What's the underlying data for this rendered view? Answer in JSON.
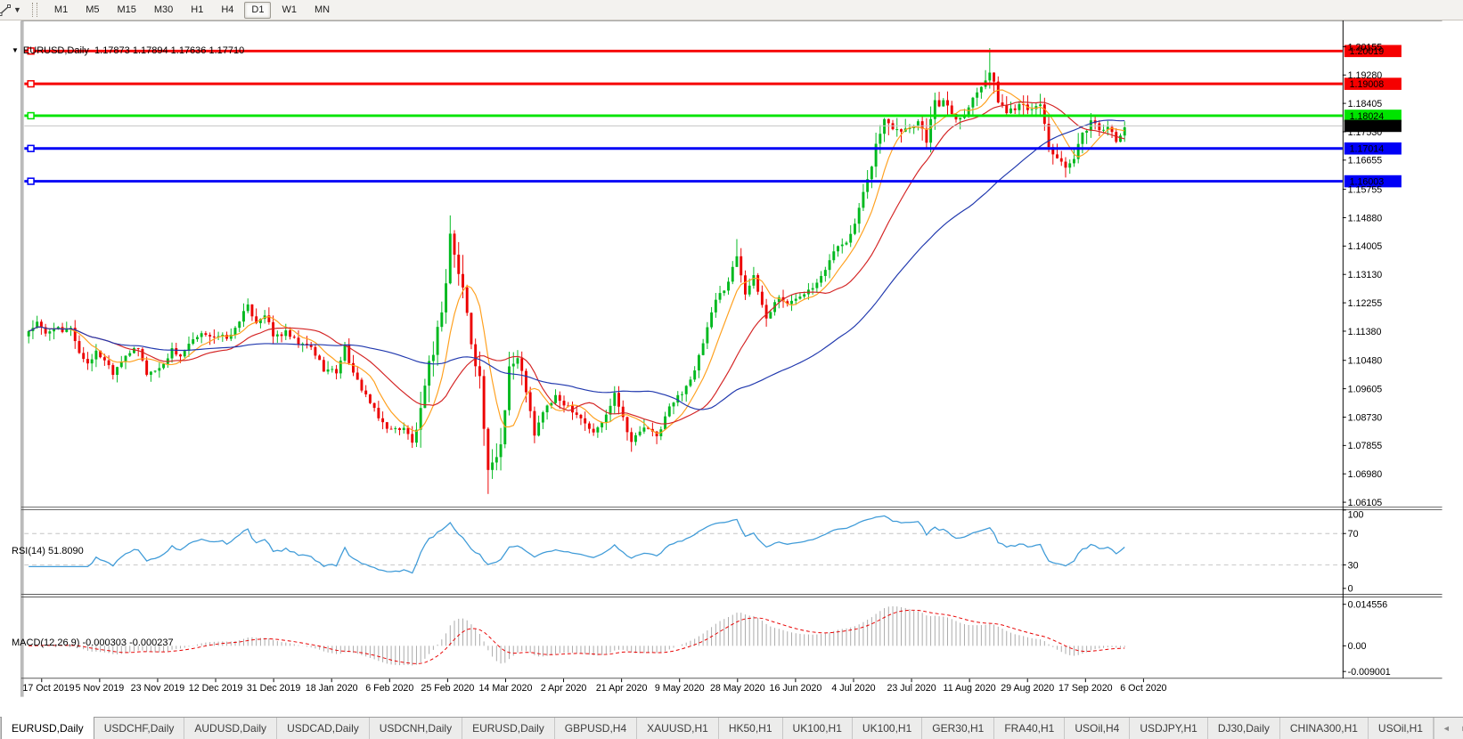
{
  "toolbar": {
    "draw_icon": "trendline-tool",
    "timeframes": [
      "M1",
      "M5",
      "M15",
      "M30",
      "H1",
      "H4",
      "D1",
      "W1",
      "MN"
    ],
    "active_timeframe": "D1"
  },
  "header": {
    "collapse_icon": "▼",
    "symbol": "EURUSD,Daily",
    "ohlc": "1.17873 1.17894 1.17636 1.17710"
  },
  "indicators": {
    "rsi": {
      "label": "RSI(14) 51.8090",
      "value": 51.809,
      "color": "#3f9bd8",
      "axis": [
        {
          "v": 100,
          "t": "100"
        },
        {
          "v": 70,
          "t": "70",
          "dashed": true
        },
        {
          "v": 30,
          "t": "30",
          "dashed": true
        },
        {
          "v": 0,
          "t": "0"
        }
      ]
    },
    "macd": {
      "label": "MACD(12,26,9) -0.000303 -0.000237",
      "main": -0.000303,
      "signal": -0.000237,
      "hist_color": "#a9a9a9",
      "signal_color": "#e80000",
      "axis": [
        {
          "v": 0.014556,
          "t": "0.014556"
        },
        {
          "v": 0,
          "t": "0.00"
        },
        {
          "v": -0.009001,
          "t": "-0.009001"
        }
      ]
    }
  },
  "chart_data": {
    "type": "candlestick",
    "title": "EURUSD,Daily",
    "colors": {
      "bull": "#00b91f",
      "bear": "#ec0000",
      "ma_fast": "#ffa01e",
      "ma_mid": "#d42424",
      "ma_slow": "#2038ae",
      "current_line": "#c4c4c4"
    },
    "price_axis_ticks": [
      "1.20155",
      "1.19280",
      "1.18405",
      "1.17530",
      "1.16655",
      "1.15755",
      "1.14880",
      "1.14005",
      "1.13130",
      "1.12255",
      "1.11380",
      "1.10480",
      "1.09605",
      "1.08730",
      "1.07855",
      "1.06980",
      "1.06105"
    ],
    "hlines": [
      {
        "price": 1.20019,
        "label": "1.20019",
        "color": "#f60000",
        "text_color": "#ffffff"
      },
      {
        "price": 1.19008,
        "label": "1.19008",
        "color": "#f60000",
        "text_color": "#ffffff"
      },
      {
        "price": 1.18024,
        "label": "1.18024",
        "color": "#00e400",
        "text_color": "#000000"
      },
      {
        "price": 1.17014,
        "label": "1.17014",
        "color": "#0000f6",
        "text_color": "#ffffff"
      },
      {
        "price": 1.16003,
        "label": "1.16003",
        "color": "#0000f6",
        "text_color": "#ffffff"
      }
    ],
    "current_price": {
      "value": 1.1771,
      "label": "1.17710",
      "box_color": "#000000",
      "text_color": "#ffffff"
    },
    "moving_averages": [
      {
        "period": 8,
        "color": "#ffa01e"
      },
      {
        "period": 21,
        "color": "#d42424"
      },
      {
        "period": 55,
        "color": "#2038ae"
      }
    ],
    "date_axis_labels": [
      "17 Oct 2019",
      "5 Nov 2019",
      "23 Nov 2019",
      "12 Dec 2019",
      "31 Dec 2019",
      "18 Jan 2020",
      "6 Feb 2020",
      "25 Feb 2020",
      "14 Mar 2020",
      "2 Apr 2020",
      "21 Apr 2020",
      "9 May 2020",
      "28 May 2020",
      "16 Jun 2020",
      "4 Jul 2020",
      "23 Jul 2020",
      "11 Aug 2020",
      "29 Aug 2020",
      "17 Sep 2020",
      "6 Oct 2020"
    ],
    "bar_count": 261,
    "price_path": {
      "keyframes": [
        [
          0,
          1.114
        ],
        [
          2,
          1.1162
        ],
        [
          4,
          1.1128
        ],
        [
          6,
          1.1152
        ],
        [
          8,
          1.1132
        ],
        [
          10,
          1.1152
        ],
        [
          12,
          1.107
        ],
        [
          14,
          1.104
        ],
        [
          16,
          1.1072
        ],
        [
          18,
          1.1052
        ],
        [
          20,
          1.1012
        ],
        [
          23,
          1.1068
        ],
        [
          26,
          1.1082
        ],
        [
          28,
          1.1008
        ],
        [
          31,
          1.1022
        ],
        [
          34,
          1.108
        ],
        [
          36,
          1.1062
        ],
        [
          39,
          1.1108
        ],
        [
          42,
          1.1132
        ],
        [
          45,
          1.1118
        ],
        [
          48,
          1.1122
        ],
        [
          50,
          1.1175
        ],
        [
          52,
          1.1212
        ],
        [
          54,
          1.1168
        ],
        [
          56,
          1.1192
        ],
        [
          58,
          1.1122
        ],
        [
          61,
          1.1132
        ],
        [
          64,
          1.1098
        ],
        [
          67,
          1.1088
        ],
        [
          70,
          1.1022
        ],
        [
          73,
          1.1012
        ],
        [
          75,
          1.1092
        ],
        [
          77,
          1.1002
        ],
        [
          80,
          1.0942
        ],
        [
          83,
          1.0868
        ],
        [
          86,
          1.0832
        ],
        [
          89,
          1.0842
        ],
        [
          91,
          1.0792
        ],
        [
          93,
          1.0882
        ],
        [
          95,
          1.1026
        ],
        [
          97,
          1.1138
        ],
        [
          99,
          1.1285
        ],
        [
          100,
          1.1442
        ],
        [
          101,
          1.1368
        ],
        [
          103,
          1.127
        ],
        [
          105,
          1.1108
        ],
        [
          107,
          1.0992
        ],
        [
          109,
          1.0692
        ],
        [
          110,
          1.0722
        ],
        [
          112,
          1.0792
        ],
        [
          114,
          1.1032
        ],
        [
          116,
          1.1048
        ],
        [
          118,
          1.0962
        ],
        [
          120,
          1.0812
        ],
        [
          122,
          1.0892
        ],
        [
          125,
          1.0932
        ],
        [
          128,
          1.0908
        ],
        [
          131,
          1.0872
        ],
        [
          134,
          1.0822
        ],
        [
          137,
          1.0878
        ],
        [
          139,
          1.0952
        ],
        [
          141,
          1.0872
        ],
        [
          143,
          1.0798
        ],
        [
          146,
          1.0842
        ],
        [
          149,
          1.0812
        ],
        [
          152,
          1.0902
        ],
        [
          155,
          1.0952
        ],
        [
          158,
          1.1012
        ],
        [
          160,
          1.1102
        ],
        [
          163,
          1.1232
        ],
        [
          166,
          1.1292
        ],
        [
          168,
          1.1372
        ],
        [
          170,
          1.1258
        ],
        [
          172,
          1.1302
        ],
        [
          175,
          1.1178
        ],
        [
          178,
          1.1248
        ],
        [
          180,
          1.1218
        ],
        [
          183,
          1.1252
        ],
        [
          186,
          1.1278
        ],
        [
          189,
          1.1332
        ],
        [
          192,
          1.1402
        ],
        [
          195,
          1.1428
        ],
        [
          197,
          1.1512
        ],
        [
          199,
          1.1598
        ],
        [
          201,
          1.1712
        ],
        [
          203,
          1.1788
        ],
        [
          205,
          1.1772
        ],
        [
          208,
          1.1762
        ],
        [
          211,
          1.1788
        ],
        [
          213,
          1.1732
        ],
        [
          215,
          1.1842
        ],
        [
          218,
          1.1838
        ],
        [
          220,
          1.1792
        ],
        [
          223,
          1.1832
        ],
        [
          226,
          1.1902
        ],
        [
          228,
          1.1938
        ],
        [
          230,
          1.1852
        ],
        [
          232,
          1.1812
        ],
        [
          234,
          1.1832
        ],
        [
          236,
          1.1848
        ],
        [
          238,
          1.1812
        ],
        [
          240,
          1.1842
        ],
        [
          242,
          1.1708
        ],
        [
          244,
          1.1672
        ],
        [
          246,
          1.1632
        ],
        [
          248,
          1.1668
        ],
        [
          250,
          1.1742
        ],
        [
          252,
          1.1788
        ],
        [
          254,
          1.1762
        ],
        [
          256,
          1.1772
        ],
        [
          258,
          1.1718
        ],
        [
          259,
          1.1742
        ],
        [
          260,
          1.1771
        ]
      ],
      "extremes": [
        {
          "i": 20,
          "low": 1.0989
        },
        {
          "i": 52,
          "high": 1.1239
        },
        {
          "i": 91,
          "low": 1.0778
        },
        {
          "i": 100,
          "high": 1.1495
        },
        {
          "i": 109,
          "low": 1.0636
        },
        {
          "i": 143,
          "low": 1.0766
        },
        {
          "i": 168,
          "high": 1.1422
        },
        {
          "i": 228,
          "high": 1.2011
        },
        {
          "i": 246,
          "low": 1.1612
        }
      ]
    },
    "ylim": [
      1.06105,
      1.20155
    ]
  },
  "tabs": {
    "items": [
      {
        "label": "EURUSD,Daily",
        "active": true
      },
      {
        "label": "USDCHF,Daily"
      },
      {
        "label": "AUDUSD,Daily"
      },
      {
        "label": "USDCAD,Daily"
      },
      {
        "label": "USDCNH,Daily"
      },
      {
        "label": "EURUSD,Daily"
      },
      {
        "label": "GBPUSD,H4"
      },
      {
        "label": "XAUUSD,H1"
      },
      {
        "label": "HK50,H1"
      },
      {
        "label": "UK100,H1"
      },
      {
        "label": "UK100,H1"
      },
      {
        "label": "GER30,H1"
      },
      {
        "label": "FRA40,H1"
      },
      {
        "label": "USOil,H4"
      },
      {
        "label": "USDJPY,H1"
      },
      {
        "label": "DJ30,Daily"
      },
      {
        "label": "CHINA300,H1"
      },
      {
        "label": "USOil,H1"
      }
    ],
    "nav_left": "◄",
    "nav_right": "►"
  }
}
